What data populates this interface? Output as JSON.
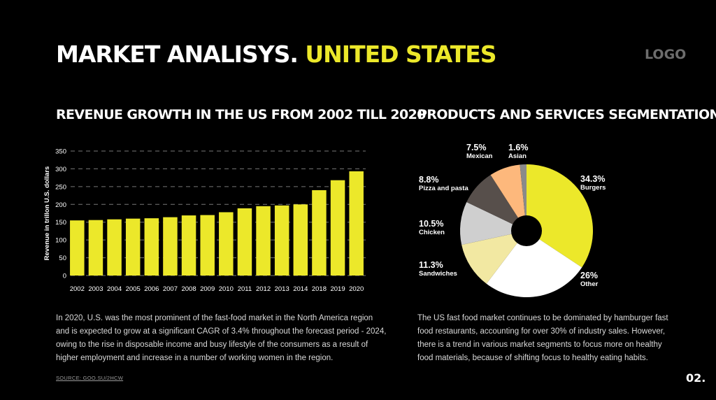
{
  "header": {
    "title_main": "MARKET ANALISYS.",
    "title_highlight": "UNITED STATES",
    "logo": "LOGO"
  },
  "colors": {
    "accent": "#ece82a",
    "background": "#000000",
    "pie": [
      "#ece82a",
      "#ffffff",
      "#f2e8a2",
      "#cfcfcf",
      "#574f4b",
      "#fdb87c",
      "#8a8a8a"
    ]
  },
  "left": {
    "heading": "REVENUE GROWTH IN THE US FROM 2002 TILL 2020",
    "paragraph": "In 2020, U.S. was the most prominent of the fast-food market in the North America region and is expected to grow at a significant CAGR of 3.4% throughout the forecast period - 2024, owing to the rise in disposable income and busy lifestyle of the consumers as a result of higher employment and increase in a number of working women in the region."
  },
  "right": {
    "heading": "PRODUCTS AND SERVICES SEGMENTATION",
    "paragraph": "The US fast food market continues to be dominated by hamburger fast food restaurants, accounting for over 30% of industry sales. However, there is a trend in various market segments to focus more on healthy food materials, because of shifting focus to healthy eating habits."
  },
  "footer": {
    "source": "SOURCE: GOO.SU/2HCW",
    "page": "02."
  },
  "chart_data": [
    {
      "type": "bar",
      "title": "REVENUE GROWTH IN THE US FROM 2002 TILL 2020",
      "categories": [
        "2002",
        "2003",
        "2004",
        "2005",
        "2006",
        "2007",
        "2008",
        "2009",
        "2010",
        "2011",
        "2012",
        "2013",
        "2014",
        "2018",
        "2019",
        "2020"
      ],
      "values": [
        155,
        156,
        158,
        160,
        161,
        164,
        169,
        170,
        178,
        189,
        195,
        197,
        200,
        240,
        268,
        293
      ],
      "ylabel": "Revenue in trillon U.S. dollars",
      "xlabel": "",
      "ylim": [
        0,
        350
      ],
      "yticks": [
        0,
        50,
        100,
        150,
        200,
        250,
        300,
        350
      ],
      "grid": true
    },
    {
      "type": "pie",
      "title": "PRODUCTS AND SERVICES SEGMENTATION",
      "donut": true,
      "slices": [
        {
          "label": "Burgers",
          "value": 34.3,
          "pct": "34.3%"
        },
        {
          "label": "Other",
          "value": 26,
          "pct": "26%"
        },
        {
          "label": "Sandwiches",
          "value": 11.3,
          "pct": "11.3%"
        },
        {
          "label": "Chicken",
          "value": 10.5,
          "pct": "10.5%"
        },
        {
          "label": "Pizza and pasta",
          "value": 8.8,
          "pct": "8.8%"
        },
        {
          "label": "Mexican",
          "value": 7.5,
          "pct": "7.5%"
        },
        {
          "label": "Asian",
          "value": 1.6,
          "pct": "1.6%"
        }
      ]
    }
  ]
}
